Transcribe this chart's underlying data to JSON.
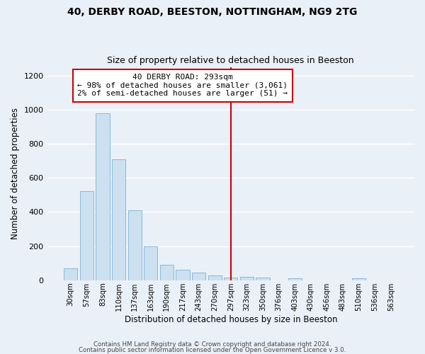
{
  "title1": "40, DERBY ROAD, BEESTON, NOTTINGHAM, NG9 2TG",
  "title2": "Size of property relative to detached houses in Beeston",
  "xlabel": "Distribution of detached houses by size in Beeston",
  "ylabel": "Number of detached properties",
  "bar_labels": [
    "30sqm",
    "57sqm",
    "83sqm",
    "110sqm",
    "137sqm",
    "163sqm",
    "190sqm",
    "217sqm",
    "243sqm",
    "270sqm",
    "297sqm",
    "323sqm",
    "350sqm",
    "376sqm",
    "403sqm",
    "430sqm",
    "456sqm",
    "483sqm",
    "510sqm",
    "536sqm",
    "563sqm"
  ],
  "bar_heights": [
    70,
    520,
    980,
    710,
    410,
    200,
    90,
    60,
    45,
    30,
    15,
    20,
    15,
    0,
    10,
    0,
    0,
    0,
    10,
    0,
    0
  ],
  "bar_color": "#cce0f0",
  "bar_edgecolor": "#7ab3d4",
  "vline_x_index": 10,
  "vline_color": "#cc0000",
  "annotation_box_text": "40 DERBY ROAD: 293sqm\n← 98% of detached houses are smaller (3,061)\n2% of semi-detached houses are larger (51) →",
  "annotation_box_color": "#cc0000",
  "annotation_box_facecolor": "white",
  "ylim": [
    0,
    1250
  ],
  "yticks": [
    0,
    200,
    400,
    600,
    800,
    1000,
    1200
  ],
  "bg_color": "#eaf0f8",
  "grid_color": "#d8e4ef",
  "footer_line1": "Contains HM Land Registry data © Crown copyright and database right 2024.",
  "footer_line2": "Contains public sector information licensed under the Open Government Licence v 3.0."
}
